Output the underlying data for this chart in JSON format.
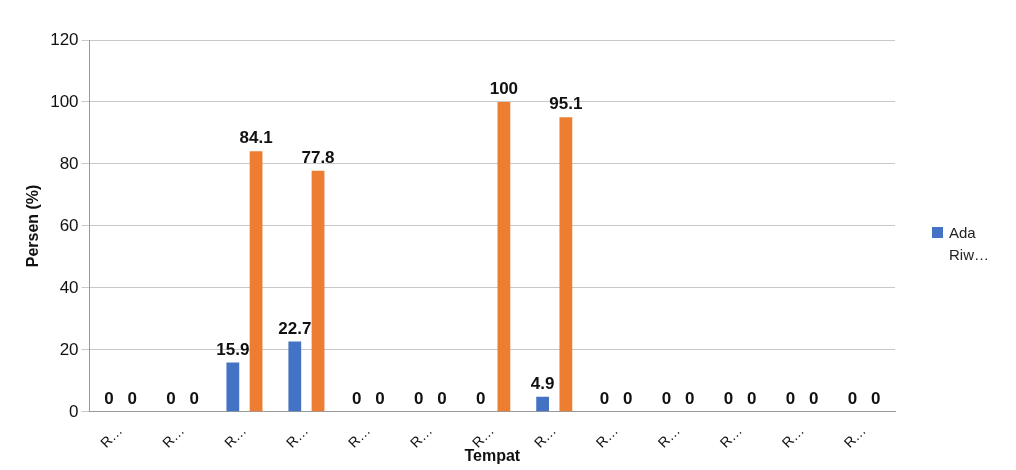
{
  "chart_data": {
    "type": "bar",
    "xlabel": "Tempat",
    "ylabel": "Persen (%)",
    "categories": [
      "R…",
      "R…",
      "R…",
      "R…",
      "R…",
      "R…",
      "R…",
      "R…",
      "R…",
      "R…",
      "R…",
      "R…",
      "R…"
    ],
    "series": [
      {
        "name": "Ada Riw…",
        "color": "#4472c4",
        "values": [
          0,
          0,
          15.9,
          22.7,
          0,
          0,
          0,
          4.9,
          0,
          0,
          0,
          0,
          0
        ]
      },
      {
        "color": "#ed7d31",
        "values": [
          0,
          0,
          84.1,
          77.8,
          0,
          0,
          100,
          95.1,
          0,
          0,
          0,
          0,
          0
        ]
      }
    ],
    "ylim": [
      0,
      120
    ],
    "yticks": [
      0,
      20,
      40,
      60,
      80,
      100,
      120
    ],
    "grid": "y",
    "legend": "right",
    "data_labels": true
  }
}
